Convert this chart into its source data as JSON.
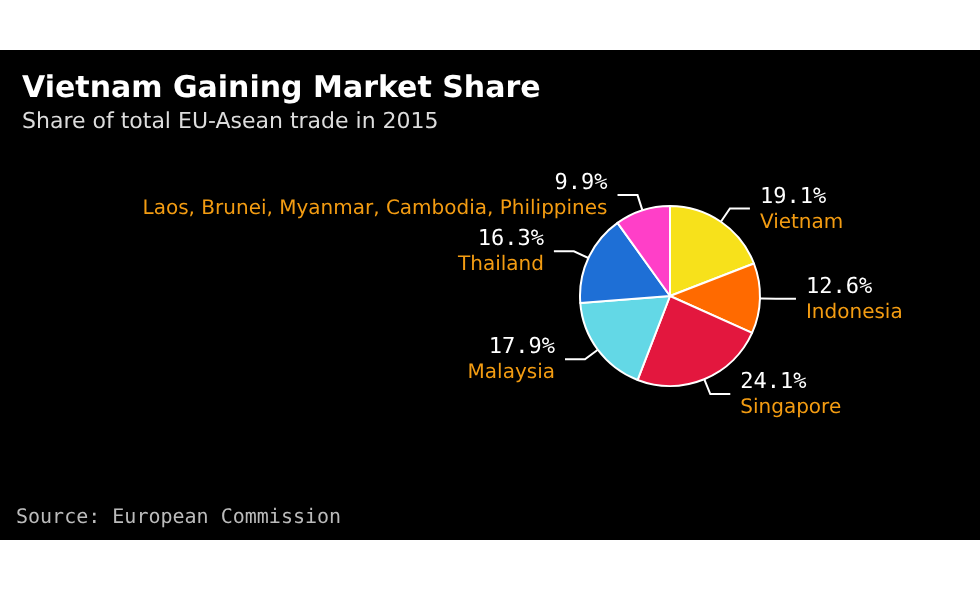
{
  "chart_data": {
    "type": "pie",
    "title": "Vietnam Gaining Market Share",
    "subtitle": "Share of total EU-Asean trade in 2015",
    "categories": [
      "Vietnam",
      "Indonesia",
      "Singapore",
      "Malaysia",
      "Thailand",
      "Laos, Brunei, Myanmar, Cambodia, Philippines"
    ],
    "values": [
      19.1,
      12.6,
      24.1,
      17.9,
      16.3,
      9.9
    ],
    "value_labels": [
      "19.1%",
      "12.6%",
      "24.1%",
      "17.9%",
      "16.3%",
      "9.9%"
    ],
    "colors": [
      "#f7e11b",
      "#ff6a00",
      "#e3173e",
      "#63d8e6",
      "#1e6fd6",
      "#ff3fc8"
    ],
    "annotations": [
      "Source: European Commission"
    ],
    "legend": false
  }
}
